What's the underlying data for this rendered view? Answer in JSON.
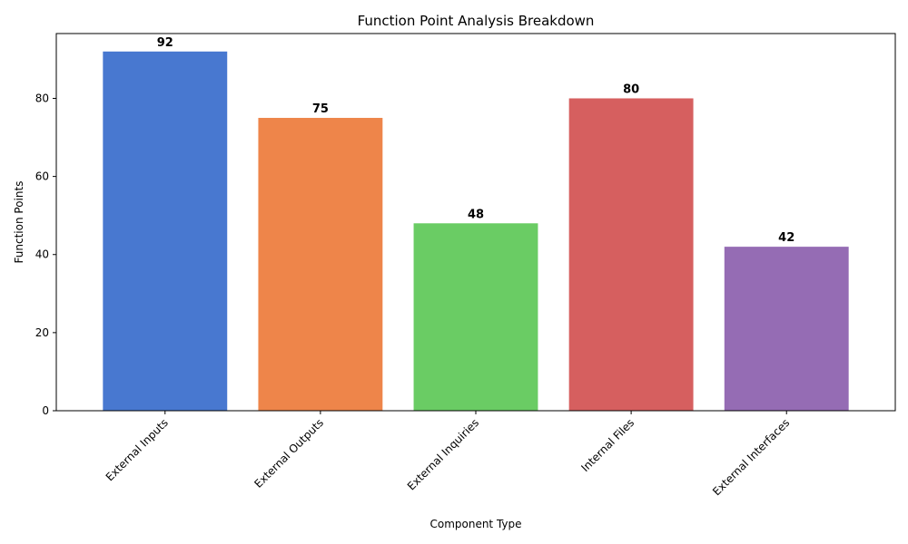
{
  "chart_data": {
    "type": "bar",
    "title": "Function Point Analysis Breakdown",
    "xlabel": "Component Type",
    "ylabel": "Function Points",
    "categories": [
      "External Inputs",
      "External Outputs",
      "External Inquiries",
      "Internal Files",
      "External Interfaces"
    ],
    "values": [
      92,
      75,
      48,
      80,
      42
    ],
    "colors": [
      "#4878d0",
      "#ee854a",
      "#6acc64",
      "#d65f5f",
      "#956cb4"
    ],
    "ylim": [
      0,
      96.6
    ],
    "yticks": [
      0,
      20,
      40,
      60,
      80
    ],
    "grid": false,
    "legend": "none"
  }
}
